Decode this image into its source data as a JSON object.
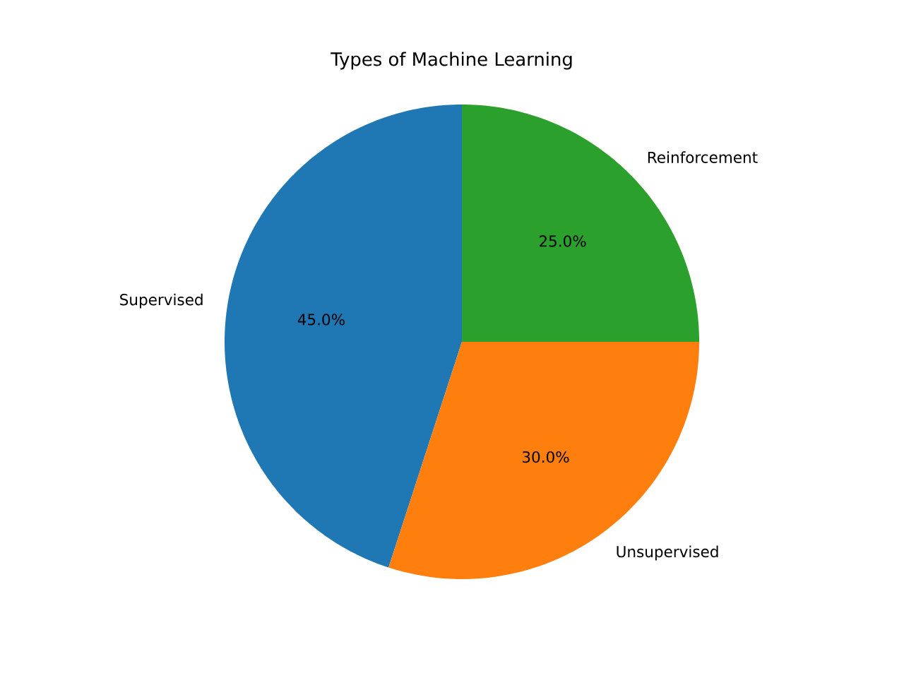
{
  "chart_data": {
    "type": "pie",
    "title": "Types of Machine Learning",
    "categories": [
      "Supervised",
      "Unsupervised",
      "Reinforcement"
    ],
    "values": [
      45,
      30,
      25
    ],
    "colors": [
      "#1f77b4",
      "#ff7f0e",
      "#2ca02c"
    ],
    "value_labels": [
      "45.0%",
      "30.0%",
      "25.0%"
    ]
  }
}
